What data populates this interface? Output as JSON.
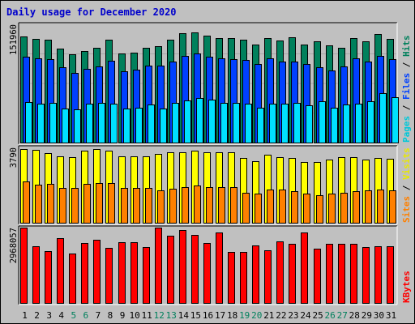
{
  "chart_data": {
    "type": "bar",
    "title": "Daily usage for December 2020",
    "categories": [
      "1",
      "2",
      "3",
      "4",
      "5",
      "6",
      "7",
      "8",
      "9",
      "10",
      "11",
      "12",
      "13",
      "14",
      "15",
      "16",
      "17",
      "18",
      "19",
      "20",
      "21",
      "22",
      "23",
      "24",
      "25",
      "26",
      "27",
      "28",
      "29",
      "30",
      "31"
    ],
    "weekend_days": [
      "5",
      "6",
      "12",
      "13",
      "19",
      "20",
      "26",
      "27"
    ],
    "panels": [
      {
        "id": "hits-files-pages",
        "ymax_label": "151960",
        "ylim": [
          0,
          151960
        ],
        "legend": [
          "Pages",
          "Files",
          "Hits"
        ],
        "series": [
          {
            "name": "Hits",
            "color": "#00805c",
            "values": [
              136000,
              133000,
              132000,
              121000,
              113000,
              118000,
              122000,
              132000,
              115000,
              116000,
              122000,
              124000,
              132000,
              140000,
              142000,
              137000,
              134000,
              134000,
              132000,
              126000,
              134000,
              131000,
              135000,
              126000,
              130000,
              125000,
              122000,
              134000,
              130000,
              139000,
              133000
            ]
          },
          {
            "name": "Files",
            "color": "#0040ff",
            "values": [
              110000,
              108000,
              107000,
              97000,
              90000,
              95000,
              98000,
              105000,
              92000,
              94000,
              99000,
              99000,
              104000,
              111000,
              115000,
              110000,
              108000,
              107000,
              106000,
              101000,
              108000,
              104000,
              104000,
              101000,
              97000,
              93000,
              98000,
              108000,
              104000,
              111000,
              107000
            ]
          },
          {
            "name": "Pages",
            "color": "#00e0ff",
            "values": [
              52000,
              50000,
              51000,
              44000,
              43000,
              50000,
              51000,
              50000,
              44000,
              45000,
              49000,
              44000,
              51000,
              54000,
              57000,
              55000,
              51000,
              51000,
              50000,
              45000,
              50000,
              50000,
              51000,
              48000,
              53000,
              45000,
              49000,
              50000,
              53000,
              63000,
              58000
            ]
          }
        ]
      },
      {
        "id": "visits-sites",
        "ymax_label": "3790",
        "ylim": [
          0,
          3790
        ],
        "legend": [
          "Sites",
          "Visits"
        ],
        "series": [
          {
            "name": "Visits",
            "color": "#ffff00",
            "values": [
              3700,
              3650,
              3500,
              3340,
              3320,
              3640,
              3720,
              3640,
              3330,
              3330,
              3330,
              3460,
              3540,
              3550,
              3610,
              3550,
              3540,
              3550,
              3260,
              3080,
              3420,
              3320,
              3280,
              3040,
              3040,
              3190,
              3290,
              3290,
              3170,
              3260,
              3220
            ]
          },
          {
            "name": "Sites",
            "color": "#ff8000",
            "values": [
              2060,
              1930,
              1970,
              1740,
              1760,
              1940,
              2000,
              1980,
              1760,
              1760,
              1760,
              1610,
              1730,
              1800,
              1880,
              1800,
              1780,
              1800,
              1510,
              1460,
              1680,
              1660,
              1600,
              1460,
              1400,
              1480,
              1500,
              1570,
              1640,
              1690,
              1630
            ]
          }
        ]
      },
      {
        "id": "kbytes",
        "ymax_label": "2968057",
        "ylim": [
          0,
          2968057
        ],
        "legend": [
          "KBytes"
        ],
        "series": [
          {
            "name": "KBytes",
            "color": "#ff0000",
            "values": [
              2968057,
              2230000,
              2040000,
              2560000,
              1960000,
              2360000,
              2500000,
              2170000,
              2400000,
              2400000,
              2190000,
              2968057,
              2650000,
              2860000,
              2690000,
              2370000,
              2790000,
              2000000,
              2000000,
              2270000,
              2070000,
              2430000,
              2340000,
              2780000,
              2130000,
              2340000,
              2340000,
              2340000,
              2190000,
              2220000,
              2230000
            ]
          }
        ]
      }
    ]
  }
}
